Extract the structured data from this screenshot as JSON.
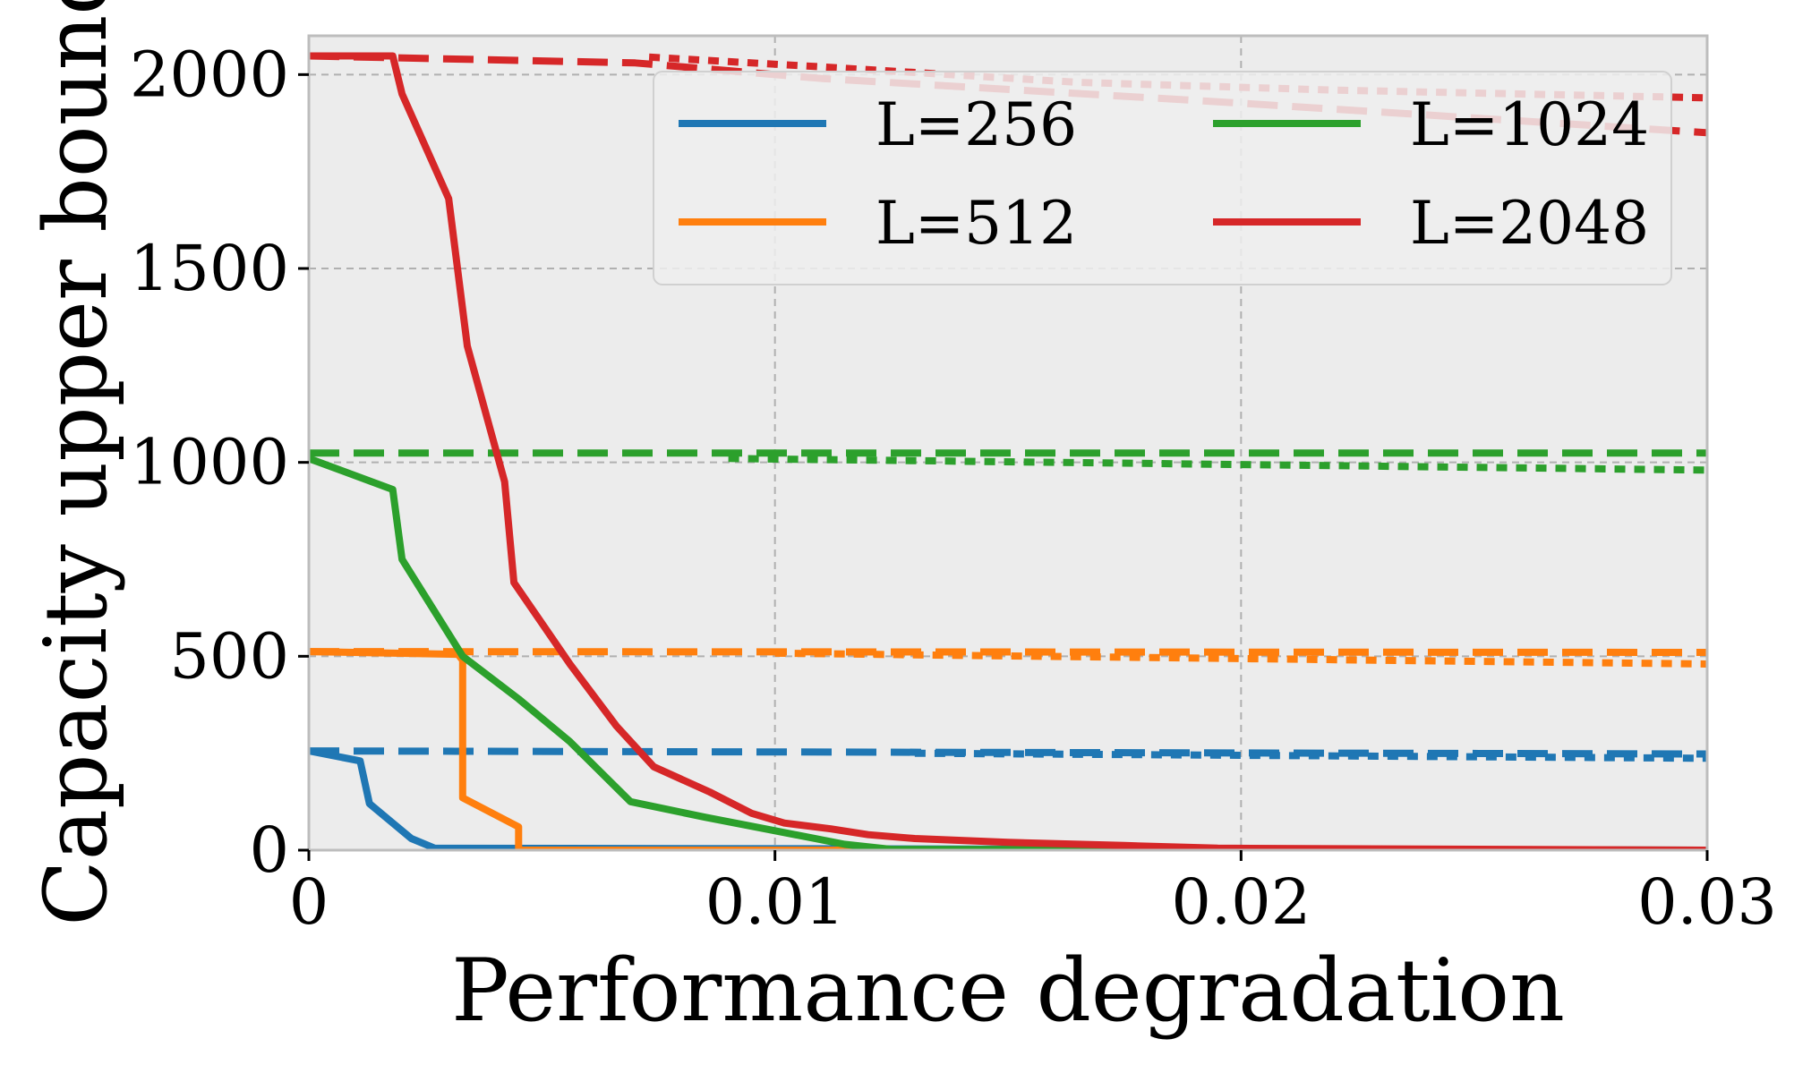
{
  "chart_data": {
    "type": "line",
    "title": "",
    "xlabel": "Performance degradation",
    "ylabel": "Capacity upper bound",
    "xlim": [
      0,
      0.03
    ],
    "ylim": [
      0,
      2100
    ],
    "grid": true,
    "x_ticks": [
      0,
      0.01,
      0.02,
      0.03
    ],
    "x_tick_labels": [
      "0",
      "0.01",
      "0.02",
      "0.03"
    ],
    "y_ticks": [
      0,
      500,
      1000,
      1500,
      2000
    ],
    "y_tick_labels": [
      "0",
      "500",
      "1000",
      "1500",
      "2000"
    ],
    "legend_position": "top-right",
    "colors": {
      "L=256": "#1f77b4",
      "L=512": "#ff7f0e",
      "L=1024": "#2ca02c",
      "L=2048": "#d62728",
      "background": "#ececec",
      "grid": "#b0b0b0"
    },
    "legend": [
      "L=256",
      "L=512",
      "L=1024",
      "L=2048"
    ],
    "series": [
      {
        "name": "L=256",
        "style": "solid",
        "color": "#1f77b4",
        "x": [
          0,
          0.0011,
          0.0013,
          0.0018,
          0.0022,
          0.0027,
          0.03
        ],
        "y": [
          256,
          230,
          120,
          70,
          30,
          5,
          0
        ]
      },
      {
        "name": "L=256",
        "style": "dashed",
        "color": "#1f77b4",
        "x": [
          0,
          0.03
        ],
        "y": [
          256,
          248
        ]
      },
      {
        "name": "L=256",
        "style": "dotted",
        "color": "#1f77b4",
        "x": [
          0.013,
          0.03
        ],
        "y": [
          250,
          237
        ]
      },
      {
        "name": "L=512",
        "style": "solid",
        "color": "#ff7f0e",
        "x": [
          0,
          0.0032,
          0.0033,
          0.0033,
          0.0045,
          0.0045,
          0.03
        ],
        "y": [
          512,
          505,
          490,
          135,
          60,
          0,
          0
        ]
      },
      {
        "name": "L=512",
        "style": "dashed",
        "color": "#ff7f0e",
        "x": [
          0,
          0.03
        ],
        "y": [
          512,
          510
        ]
      },
      {
        "name": "L=512",
        "style": "dotted",
        "color": "#ff7f0e",
        "x": [
          0.01,
          0.03
        ],
        "y": [
          508,
          480
        ]
      },
      {
        "name": "L=1024",
        "style": "solid",
        "color": "#2ca02c",
        "x": [
          0,
          0.0018,
          0.002,
          0.0033,
          0.0045,
          0.0056,
          0.0069,
          0.0085,
          0.01,
          0.0115,
          0.0125,
          0.03
        ],
        "y": [
          1010,
          930,
          750,
          500,
          390,
          280,
          125,
          85,
          50,
          15,
          2,
          0
        ]
      },
      {
        "name": "L=1024",
        "style": "dashed",
        "color": "#2ca02c",
        "x": [
          0,
          0.03
        ],
        "y": [
          1024,
          1024
        ]
      },
      {
        "name": "L=1024",
        "style": "dotted",
        "color": "#2ca02c",
        "x": [
          0.009,
          0.03
        ],
        "y": [
          1010,
          980
        ]
      },
      {
        "name": "L=2048",
        "style": "solid",
        "color": "#d62728",
        "x": [
          0,
          0.0018,
          0.002,
          0.003,
          0.0034,
          0.0042,
          0.0044,
          0.0056,
          0.0066,
          0.0074,
          0.0086,
          0.0095,
          0.0102,
          0.0112,
          0.012,
          0.013,
          0.015,
          0.0175,
          0.0195,
          0.03
        ],
        "y": [
          2048,
          2048,
          1950,
          1680,
          1300,
          950,
          690,
          480,
          320,
          215,
          150,
          95,
          70,
          55,
          40,
          30,
          20,
          12,
          5,
          0
        ]
      },
      {
        "name": "L=2048",
        "style": "dashed",
        "color": "#d62728",
        "x": [
          0,
          0.007,
          0.011,
          0.0195,
          0.03
        ],
        "y": [
          2048,
          2030,
          1990,
          1930,
          1850
        ]
      },
      {
        "name": "L=2048",
        "style": "dotted",
        "color": "#d62728",
        "x": [
          0.0073,
          0.011,
          0.0165,
          0.022,
          0.03
        ],
        "y": [
          2045,
          2020,
          1980,
          1960,
          1940
        ]
      }
    ]
  }
}
